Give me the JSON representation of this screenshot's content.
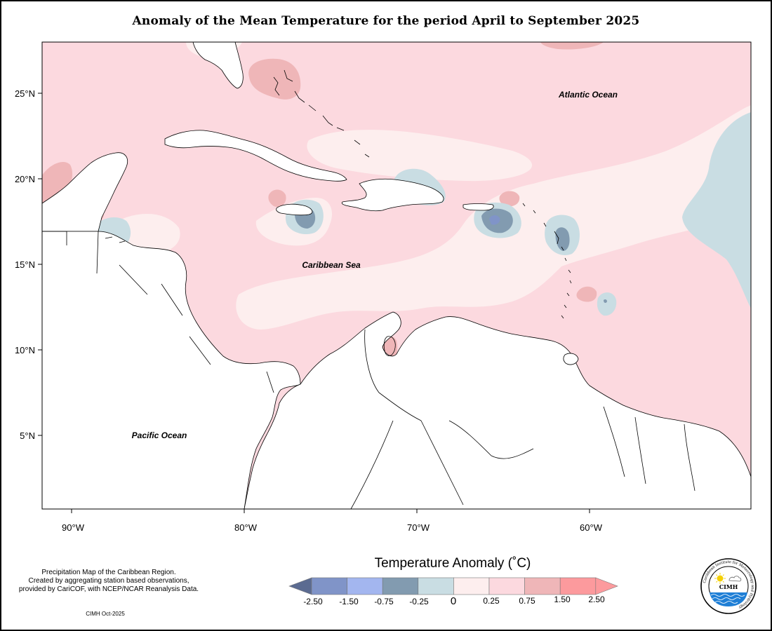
{
  "title": "Anomaly of the Mean Temperature for the period April to September 2025",
  "axes": {
    "lat_ticks": [
      "25°N",
      "20°N",
      "15°N",
      "10°N",
      "5°N"
    ],
    "lon_ticks": [
      "90°W",
      "80°W",
      "70°W",
      "60°W"
    ]
  },
  "ocean_labels": {
    "atlantic": "Atlantic Ocean",
    "caribbean": "Caribbean Sea",
    "pacific": "Pacific Ocean"
  },
  "legend": {
    "title": "Temperature Anomaly (˚C)",
    "ticks": [
      "-2.50",
      "-1.50",
      "-0.75",
      "-0.25",
      "0",
      "0.25",
      "0.75",
      "1.50",
      "2.50"
    ],
    "colors": [
      "#5b6b91",
      "#8094c8",
      "#a3b6ef",
      "#829bb0",
      "#c9dde3",
      "#fdeeee",
      "#fcd9df",
      "#efb6b8",
      "#fc9a9d",
      "#fc9a9d"
    ]
  },
  "footnote": {
    "line1": "Precipitation Map of the Caribbean Region.",
    "line2": "Created by aggregating station based observations,",
    "line3": "provided by CariCOF, with NCEP/NCAR Reanalysis Data."
  },
  "credit": "CIMH Oct-2025",
  "logo": {
    "ring_text": "Caribbean Institute for Meteorology and Hydrology",
    "center_text": "CIMH",
    "icons": [
      "sun-icon",
      "cloud-icon",
      "wave-icon"
    ]
  },
  "colors": {
    "anom_pos_light": "#fcd9df",
    "anom_near_zero": "#fdeeee",
    "anom_pos_mid": "#efb6b8",
    "anom_neg_light": "#c9dde3",
    "anom_neg_mid": "#829bb0",
    "anom_neg_strong": "#6e86b8",
    "land": "#ffffff",
    "coast": "#000000"
  }
}
